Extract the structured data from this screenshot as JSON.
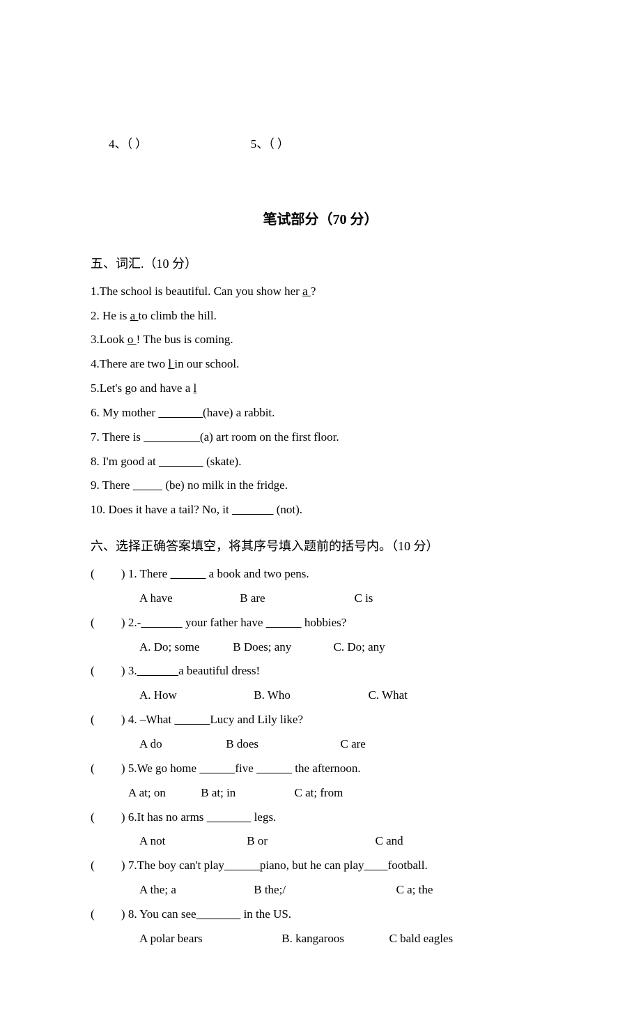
{
  "top_row": {
    "item4": "4、（          ）",
    "item5": "5、（          ）"
  },
  "written_header": "笔试部分（70 分）",
  "sec5": {
    "title": "五、词汇.（10 分）",
    "q1_a": "1.The school is beautiful. Can you show her ",
    "q1_u": "a            ",
    "q1_b": "?",
    "q2_a": "2. He is ",
    "q2_u": "a               ",
    "q2_b": "to climb the hill.",
    "q3_a": "3.Look ",
    "q3_u": "o              ",
    "q3_b": "! The bus is coming.",
    "q4_a": "4.There are two ",
    "q4_u": "l              ",
    "q4_b": "in our school.",
    "q5_a": "5.Let's go and have a ",
    "q5_u": "l           ",
    "q6_a": "6. My mother  ",
    "q6_blank": "               ",
    "q6_b": "(have) a rabbit.",
    "q7_a": "7. There is  ",
    "q7_blank": "                   ",
    "q7_b": "(a) art room on the first floor.",
    "q8_a": "8. I'm good at ",
    "q8_blank": "               ",
    "q8_b": " (skate).",
    "q9_a": "9. There ",
    "q9_blank": "          ",
    "q9_b": " (be) no milk in the fridge.",
    "q10_a": "10. Does it have a tail? No, it ",
    "q10_blank": "              ",
    "q10_b": " (not)."
  },
  "sec6": {
    "title": "六、选择正确答案填空，将其序号填入题前的括号内。（10 分）",
    "paren": "(         ) ",
    "q1_stem_a": "1. There ",
    "q1_blank": "            ",
    "q1_stem_b": " a book and two pens.",
    "q1_A": "A have",
    "q1_B": "B are",
    "q1_C": "C is",
    "q2_stem_a": "2.-",
    "q2_blank1": "              ",
    "q2_stem_b": " your father have ",
    "q2_blank2": "            ",
    "q2_stem_c": " hobbies?",
    "q2_A": "A. Do; some",
    "q2_B": "B Does; any",
    "q2_C": "C. Do; any",
    "q3_stem_a": "3.",
    "q3_blank": "              ",
    "q3_stem_b": "a beautiful dress!",
    "q3_A": "A.  How",
    "q3_B": "B. Who",
    "q3_C": "C. What",
    "q4_stem_a": "4. –What ",
    "q4_blank": "            ",
    "q4_stem_b": "Lucy and Lily like?",
    "q4_A": "A do",
    "q4_B": "B does",
    "q4_C": "C are",
    "q5_stem_a": "5.We go home ",
    "q5_blank1": "            ",
    "q5_stem_b": "five ",
    "q5_blank2": "            ",
    "q5_stem_c": " the afternoon.",
    "q5_A": "A at; on",
    "q5_B": "B at; in",
    "q5_C": "C at; from",
    "q6_stem_a": "6.It has no arms ",
    "q6_blank": "               ",
    "q6_stem_b": "  legs.",
    "q6_A": "A not",
    "q6_B": "B or",
    "q6_C": "C and",
    "q7_stem_a": "7.The boy can't play",
    "q7_blank1": "            ",
    "q7_stem_b": "piano, but he can play",
    "q7_blank2": "        ",
    "q7_stem_c": "football.",
    "q7_A": "A the; a",
    "q7_B": "B the;/",
    "q7_C": "C a; the",
    "q8_stem_a": "8. You can see",
    "q8_blank": "               ",
    "q8_stem_b": " in the US.",
    "q8_A": "A polar bears",
    "q8_B": "B. kangaroos",
    "q8_C": "C bald eagles"
  }
}
